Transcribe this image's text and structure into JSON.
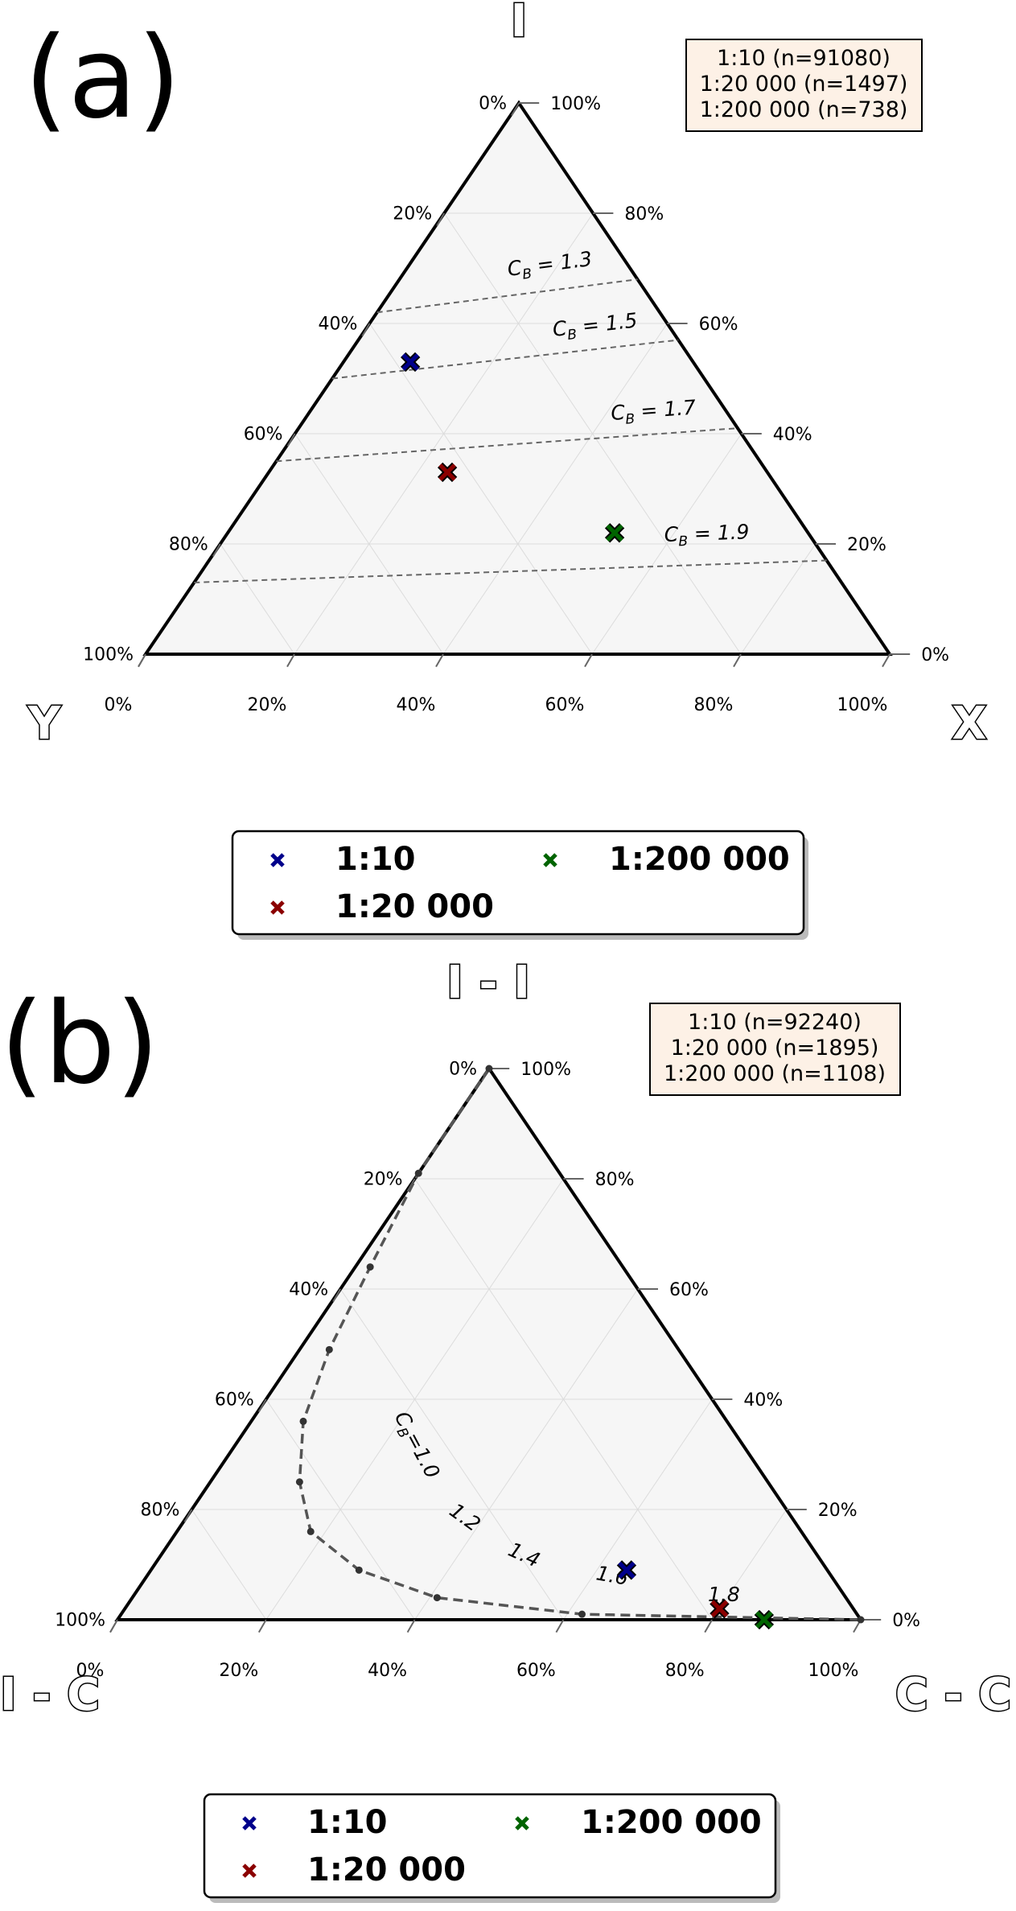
{
  "panels": [
    {
      "label": "(a)",
      "vertices": {
        "top": "I",
        "left": "Y",
        "right": "X"
      },
      "ticks": [
        "0%",
        "20%",
        "40%",
        "60%",
        "80%",
        "100%"
      ],
      "counts": [
        "1:10 (n=91080)",
        "1:20 000 (n=1497)",
        "1:200 000 (n=738)"
      ],
      "legend": [
        "1:10",
        "1:20 000",
        "1:200 000"
      ]
    },
    {
      "label": "(b)",
      "vertices": {
        "top": "I - I",
        "left": "I - C",
        "right": "C - C"
      },
      "ticks": [
        "0%",
        "20%",
        "40%",
        "60%",
        "80%",
        "100%"
      ],
      "counts": [
        "1:10 (n=92240)",
        "1:20 000 (n=1895)",
        "1:200 000 (n=1108)"
      ],
      "legend": [
        "1:10",
        "1:20 000",
        "1:200 000"
      ]
    }
  ],
  "chart_data": [
    {
      "type": "scatter",
      "subtype": "ternary",
      "corner_labels": {
        "top": "I",
        "left": "Y",
        "right": "X"
      },
      "axis_ticks": [
        0,
        20,
        40,
        60,
        80,
        100
      ],
      "axis_unit": "%",
      "series": [
        {
          "name": "1:10",
          "n": 91080,
          "color": "#00008b",
          "point": {
            "top": 53,
            "left": 38,
            "right": 9
          }
        },
        {
          "name": "1:20 000",
          "n": 1497,
          "color": "#8b0000",
          "point": {
            "top": 33,
            "left": 43,
            "right": 24
          }
        },
        {
          "name": "1:200 000",
          "n": 738,
          "color": "#006400",
          "point": {
            "top": 22,
            "left": 26,
            "right": 52
          }
        }
      ],
      "contours": [
        {
          "label": "1.3",
          "from": {
            "top": 62,
            "left": 38,
            "right": 0
          },
          "to": {
            "top": 68,
            "left": 0,
            "right": 32
          }
        },
        {
          "label": "1.5",
          "from": {
            "top": 50,
            "left": 50,
            "right": 0
          },
          "to": {
            "top": 57,
            "left": 0,
            "right": 43
          }
        },
        {
          "label": "1.7",
          "from": {
            "top": 35,
            "left": 65,
            "right": 0
          },
          "to": {
            "top": 41,
            "left": 0,
            "right": 59
          }
        },
        {
          "label": "1.9",
          "from": {
            "top": 13,
            "left": 87,
            "right": 0
          },
          "to": {
            "top": 17,
            "left": 0,
            "right": 83
          }
        }
      ],
      "contour_symbol": "C_B",
      "grid": true,
      "legend_position": "bottom"
    },
    {
      "type": "scatter",
      "subtype": "ternary",
      "corner_labels": {
        "top": "I - I",
        "left": "I - C",
        "right": "C - C"
      },
      "axis_ticks": [
        0,
        20,
        40,
        60,
        80,
        100
      ],
      "axis_unit": "%",
      "series": [
        {
          "name": "1:10",
          "n": 92240,
          "color": "#00008b",
          "point": {
            "top": 9,
            "left": 27,
            "right": 64
          }
        },
        {
          "name": "1:20 000",
          "n": 1895,
          "color": "#8b0000",
          "point": {
            "top": 2,
            "left": 18,
            "right": 80
          }
        },
        {
          "name": "1:200 000",
          "n": 1108,
          "color": "#006400",
          "point": {
            "top": 0,
            "left": 13,
            "right": 87
          }
        }
      ],
      "curve": {
        "contour_symbol": "C_B",
        "points": [
          {
            "top": 100,
            "left": 0,
            "right": 0
          },
          {
            "top": 81,
            "left": 19,
            "right": 0
          },
          {
            "top": 64,
            "left": 34,
            "right": 2
          },
          {
            "top": 49,
            "left": 47,
            "right": 4
          },
          {
            "top": 36,
            "left": 57,
            "right": 7
          },
          {
            "top": 25,
            "left": 63,
            "right": 12
          },
          {
            "top": 16,
            "left": 66,
            "right": 18
          },
          {
            "top": 9,
            "left": 63,
            "right": 28
          },
          {
            "top": 4,
            "left": 55,
            "right": 41
          },
          {
            "top": 1,
            "left": 37,
            "right": 62
          },
          {
            "top": 0,
            "left": 0,
            "right": 100
          }
        ],
        "value_labels": [
          "1.0",
          "1.2",
          "1.4",
          "1.6",
          "1.8"
        ]
      },
      "grid": true,
      "legend_position": "bottom"
    }
  ]
}
